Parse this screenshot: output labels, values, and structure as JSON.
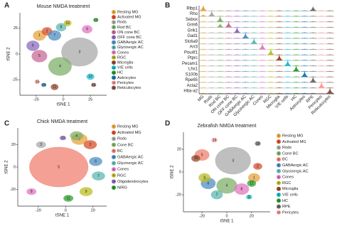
{
  "chart_data": [
    {
      "type": "scatter",
      "panel": "A",
      "title": "Mouse NMDA treatment",
      "xlabel": "tSNE 1",
      "ylabel": "tSNE 2",
      "xlim": [
        -40,
        40
      ],
      "ylim": [
        -40,
        40
      ],
      "xticks": [
        -25,
        0,
        25
      ],
      "yticks": [
        -25,
        0,
        25
      ],
      "series": [
        {
          "name": "Resting MG",
          "label": "1",
          "color": "#e8a33d",
          "x": -22,
          "y": 18,
          "size": 5
        },
        {
          "name": "Activated MG",
          "label": "2",
          "color": "#d94f2b",
          "x": -15,
          "y": 22,
          "size": 4
        },
        {
          "name": "Rods",
          "label": "3",
          "color": "#a9a9a9",
          "x": 15,
          "y": 2,
          "size": 14
        },
        {
          "name": "Rod BC",
          "label": "4",
          "color": "#7fb069",
          "x": -3,
          "y": -12,
          "size": 9
        },
        {
          "name": "ON cone BC",
          "label": "5",
          "color": "#c76b98",
          "x": -22,
          "y": -2,
          "size": 6
        },
        {
          "name": "OFF cone BC",
          "label": "6",
          "color": "#8e6bbf",
          "x": -28,
          "y": 8,
          "size": 5
        },
        {
          "name": "GABAergic AC",
          "label": "7",
          "color": "#4f8fc0",
          "x": -8,
          "y": 18,
          "size": 5
        },
        {
          "name": "Glycinergic AC",
          "label": "8",
          "color": "#5fb7b2",
          "x": -2,
          "y": 26,
          "size": 4
        },
        {
          "name": "Cones",
          "label": "9",
          "color": "#e377c2",
          "x": 22,
          "y": 24,
          "size": 4
        },
        {
          "name": "RGC",
          "label": "10",
          "color": "#bcbd22",
          "x": 4,
          "y": 30,
          "size": 3
        },
        {
          "name": "Microglia",
          "label": "11",
          "color": "#9e4a2e",
          "x": -8,
          "y": -32,
          "size": 3
        },
        {
          "name": "V/E cells",
          "label": "12",
          "color": "#17becf",
          "x": 25,
          "y": -22,
          "size": 3
        },
        {
          "name": "HC",
          "label": "13",
          "color": "#2ca02c",
          "x": 30,
          "y": 33,
          "size": 2
        },
        {
          "name": "Astrocytes",
          "label": "14",
          "color": "#1f77b4",
          "x": -18,
          "y": -30,
          "size": 2
        },
        {
          "name": "Pericytes",
          "label": "15",
          "color": "#ff9896",
          "x": -24,
          "y": -27,
          "size": 2
        },
        {
          "name": "Reticulocytes",
          "label": "16",
          "color": "#8c564b",
          "x": 28,
          "y": -30,
          "size": 2
        }
      ]
    },
    {
      "type": "violin",
      "panel": "B",
      "categories": [
        "MG",
        "Rods",
        "Rod BC",
        "ON cone BC",
        "OFF cone BC",
        "GABAergic AC",
        "Glycinergic AC",
        "Cones",
        "RGC",
        "Microglia",
        "V/E cells",
        "HC",
        "Astrocytes",
        "RPE",
        "Pericytes",
        "Reticulocytes"
      ],
      "colors": [
        "#e8a33d",
        "#a9a9a9",
        "#7fb069",
        "#c76b98",
        "#8e6bbf",
        "#4f8fc0",
        "#5fb7b2",
        "#e377c2",
        "#bcbd22",
        "#9e4a2e",
        "#17becf",
        "#2ca02c",
        "#1f77b4",
        "#6b6b6b",
        "#ff9896",
        "#8c564b"
      ],
      "series": [
        {
          "name": "Rlbp1",
          "values": [
            1,
            0,
            0,
            0,
            0,
            0,
            0,
            0,
            0,
            0,
            0,
            0,
            0,
            0.8,
            0,
            0
          ]
        },
        {
          "name": "Rho",
          "values": [
            0.3,
            1,
            0,
            0,
            0,
            0,
            0,
            0,
            0,
            0,
            0,
            0,
            0,
            0,
            0,
            0
          ]
        },
        {
          "name": "Sebox",
          "values": [
            0,
            0,
            1,
            0,
            0,
            0,
            0,
            0,
            0,
            0,
            0,
            0,
            0,
            0,
            0,
            0
          ]
        },
        {
          "name": "Grm6",
          "values": [
            0,
            0,
            0.7,
            1,
            0,
            0,
            0,
            0,
            0,
            0,
            0,
            0,
            0,
            0,
            0,
            0
          ]
        },
        {
          "name": "Grik1",
          "values": [
            0,
            0,
            0,
            0,
            1,
            0,
            0,
            0,
            0,
            0,
            0,
            0,
            0,
            0,
            0,
            0
          ]
        },
        {
          "name": "Gad1",
          "values": [
            0,
            0,
            0,
            0,
            0,
            1,
            0,
            0,
            0,
            0,
            0,
            0,
            0,
            0,
            0,
            0
          ]
        },
        {
          "name": "Slc6a9",
          "values": [
            0,
            0,
            0,
            0,
            0,
            0,
            1,
            0,
            0,
            0,
            0,
            0,
            0,
            0,
            0,
            0
          ]
        },
        {
          "name": "Arr3",
          "values": [
            0,
            0,
            0,
            0,
            0,
            0,
            0,
            1,
            0,
            0,
            0,
            0,
            0,
            0,
            0,
            0
          ]
        },
        {
          "name": "Pou4f1",
          "values": [
            0,
            0,
            0,
            0,
            0,
            0,
            0,
            0,
            1,
            0,
            0,
            0,
            0,
            0,
            0,
            0
          ]
        },
        {
          "name": "Ptprc",
          "values": [
            0,
            0,
            0,
            0,
            0,
            0,
            0,
            0,
            0,
            1,
            0,
            0,
            0,
            0,
            0,
            0
          ]
        },
        {
          "name": "Pecam1",
          "values": [
            0,
            0,
            0,
            0,
            0,
            0,
            0,
            0,
            0,
            0,
            1,
            0,
            0,
            0,
            0,
            0
          ]
        },
        {
          "name": "Lhx1",
          "values": [
            0,
            0,
            0,
            0,
            0,
            0,
            0,
            0,
            0,
            0,
            0,
            1,
            0,
            0,
            0,
            0
          ]
        },
        {
          "name": "S100b",
          "values": [
            0,
            0,
            0,
            0,
            0,
            0,
            0,
            0,
            0,
            0,
            0,
            0,
            1,
            0,
            0,
            0
          ]
        },
        {
          "name": "Rpe65",
          "values": [
            0,
            0,
            0,
            0,
            0,
            0,
            0,
            0,
            0,
            0,
            0,
            0,
            0,
            1,
            0,
            0
          ]
        },
        {
          "name": "Acta2",
          "values": [
            0,
            0,
            0,
            0,
            0,
            0,
            0,
            0,
            0,
            0,
            0,
            0,
            0,
            0,
            1,
            0
          ]
        },
        {
          "name": "Hba-a2",
          "values": [
            0,
            0,
            0,
            0,
            0,
            0,
            0,
            0,
            0,
            0,
            0,
            0,
            0,
            0,
            0,
            1
          ]
        }
      ]
    },
    {
      "type": "scatter",
      "panel": "C",
      "title": "Chick NMDA treatment",
      "xlabel": "tSNE 1",
      "ylabel": "tSNE 2",
      "xlim": [
        -35,
        30
      ],
      "ylim": [
        -35,
        35
      ],
      "xticks": [
        -20,
        0,
        20
      ],
      "yticks": [
        -20,
        0,
        20
      ],
      "series": [
        {
          "name": "Resting MG",
          "label": "1",
          "color": "#e8a33d",
          "x": 10,
          "y": 25,
          "size": 5
        },
        {
          "name": "Activated MG",
          "label": "2",
          "color": "#d94f2b",
          "x": 18,
          "y": 20,
          "size": 4
        },
        {
          "name": "Rods",
          "label": "3",
          "color": "#a9a9a9",
          "x": -18,
          "y": 20,
          "size": 3
        },
        {
          "name": "Cone BC",
          "label": "4",
          "color": "#7fb069",
          "x": 8,
          "y": 28,
          "size": 4
        },
        {
          "name": "BC",
          "label": "5",
          "color": "#f08070",
          "x": -5,
          "y": 0,
          "size": 18
        },
        {
          "name": "GABAergic AC",
          "label": "6",
          "color": "#4f8fc0",
          "x": 22,
          "y": 5,
          "size": 4
        },
        {
          "name": "Glycinergic AC",
          "label": "7",
          "color": "#5fb7b2",
          "x": 24,
          "y": -8,
          "size": 4
        },
        {
          "name": "Cones",
          "label": "8",
          "color": "#e377c2",
          "x": -25,
          "y": -22,
          "size": 3
        },
        {
          "name": "RGC",
          "label": "9",
          "color": "#bcbd22",
          "x": 15,
          "y": -22,
          "size": 4
        },
        {
          "name": "Oligodendrocytes",
          "label": "10",
          "color": "#9467bd",
          "x": -2,
          "y": 26,
          "size": 2
        },
        {
          "name": "NIRG",
          "label": "11",
          "color": "#2ca02c",
          "x": 2,
          "y": -28,
          "size": 3
        }
      ]
    },
    {
      "type": "scatter",
      "panel": "D",
      "title": "Zebrafish NMDA treatment",
      "xlabel": "tSNE 1",
      "ylabel": "tSNE 2",
      "xlim": [
        -35,
        35
      ],
      "ylim": [
        -35,
        35
      ],
      "xticks": [
        -20,
        0,
        20
      ],
      "yticks": [
        -20,
        0,
        20
      ],
      "series": [
        {
          "name": "Resting MG",
          "label": "1",
          "color": "#e8a33d",
          "x": 22,
          "y": -5,
          "size": 4
        },
        {
          "name": "Activated MG",
          "label": "2",
          "color": "#d94f2b",
          "x": 25,
          "y": 5,
          "size": 3
        },
        {
          "name": "Rods",
          "label": "3",
          "color": "#a9a9a9",
          "x": 5,
          "y": 10,
          "size": 12
        },
        {
          "name": "Cone BC",
          "label": "4",
          "color": "#7fb069",
          "x": 0,
          "y": -12,
          "size": 7
        },
        {
          "name": "BC",
          "label": "5",
          "color": "#f08070",
          "x": -20,
          "y": 15,
          "size": 5
        },
        {
          "name": "GABAergic AC",
          "label": "6",
          "color": "#4f8fc0",
          "x": -15,
          "y": -10,
          "size": 5
        },
        {
          "name": "Glycinergic AC",
          "label": "7",
          "color": "#5fb7b2",
          "x": -8,
          "y": -20,
          "size": 4
        },
        {
          "name": "Cones",
          "label": "8",
          "color": "#e377c2",
          "x": 12,
          "y": -15,
          "size": 5
        },
        {
          "name": "RGC",
          "label": "9",
          "color": "#bcbd22",
          "x": -18,
          "y": -5,
          "size": 4
        },
        {
          "name": "Microglia",
          "label": "10",
          "color": "#9e4a2e",
          "x": -25,
          "y": 12,
          "size": 3
        },
        {
          "name": "V/E cells",
          "label": "11",
          "color": "#17becf",
          "x": 18,
          "y": -22,
          "size": 2
        },
        {
          "name": "HC",
          "label": "12",
          "color": "#2ca02c",
          "x": 20,
          "y": -10,
          "size": 3
        },
        {
          "name": "RPE",
          "label": "13",
          "color": "#6b6b6b",
          "x": 25,
          "y": 25,
          "size": 2
        },
        {
          "name": "Pericytes",
          "label": "14",
          "color": "#ff9896",
          "x": -10,
          "y": 28,
          "size": 2
        }
      ]
    }
  ]
}
